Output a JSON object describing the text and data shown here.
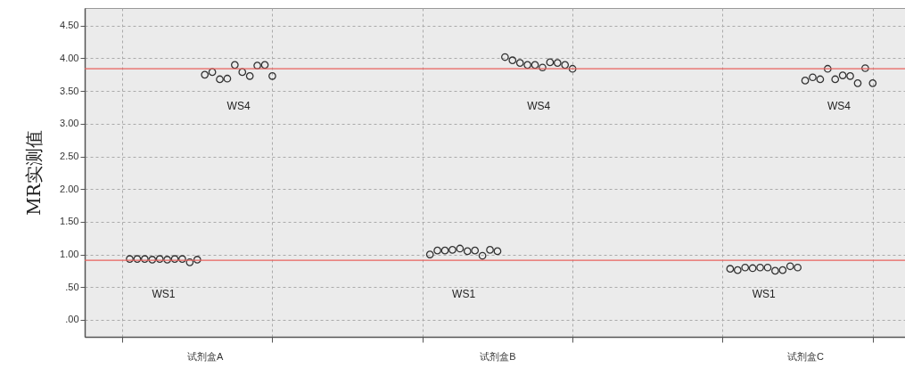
{
  "chart_data": {
    "type": "scatter",
    "ylabel": "MR实测值",
    "categories": [
      null,
      null,
      null,
      null,
      null,
      null,
      null,
      null,
      null,
      null,
      "试剂盒A",
      null,
      null,
      null,
      null,
      null,
      null,
      null,
      null,
      null,
      null,
      null,
      null,
      null,
      null,
      null,
      null,
      null,
      null,
      null,
      null,
      null,
      null,
      null,
      null,
      null,
      null,
      null,
      null,
      null,
      null,
      null,
      null,
      null,
      null,
      null,
      null,
      null,
      null,
      "试剂盒B",
      null,
      null,
      null,
      null,
      null,
      null,
      null,
      null,
      null,
      null,
      null,
      null,
      null,
      null,
      null,
      null,
      null,
      null,
      null,
      null,
      null,
      null,
      null,
      null,
      null,
      null,
      null,
      null,
      null,
      null,
      null,
      null,
      null,
      null,
      null,
      null,
      null,
      null,
      null,
      null,
      "试剂盒C",
      null,
      null,
      null,
      null,
      null,
      null,
      null,
      null,
      null
    ],
    "ylim": [
      -0.26,
      4.77
    ],
    "yticks": [
      {
        "value": 0,
        "label": ".00"
      },
      {
        "value": 0.5,
        "label": ".50"
      },
      {
        "value": 1,
        "label": "1.00"
      },
      {
        "value": 1.5,
        "label": "1.50"
      },
      {
        "value": 2,
        "label": "2.00"
      },
      {
        "value": 2.5,
        "label": "2.50"
      },
      {
        "value": 3,
        "label": "3.00"
      },
      {
        "value": 3.5,
        "label": "3.50"
      },
      {
        "value": 4,
        "label": "4.00"
      },
      {
        "value": 4.5,
        "label": "4.50"
      }
    ],
    "grid": true,
    "marker": "circle",
    "series": [
      {
        "name": "WS1",
        "color": "#333333",
        "values": [
          0.93,
          0.93,
          0.93,
          0.92,
          0.93,
          0.92,
          0.93,
          0.93,
          0.88,
          0.92,
          null,
          null,
          null,
          null,
          null,
          null,
          null,
          null,
          null,
          null,
          null,
          null,
          null,
          null,
          null,
          null,
          null,
          null,
          null,
          null,
          null,
          null,
          null,
          null,
          null,
          null,
          null,
          null,
          null,
          null,
          1.0,
          1.06,
          1.06,
          1.07,
          1.09,
          1.05,
          1.06,
          0.98,
          1.07,
          1.05,
          null,
          null,
          null,
          null,
          null,
          null,
          null,
          null,
          null,
          null,
          null,
          null,
          null,
          null,
          null,
          null,
          null,
          null,
          null,
          null,
          null,
          null,
          null,
          null,
          null,
          null,
          null,
          null,
          null,
          null,
          0.78,
          0.76,
          0.8,
          0.79,
          0.8,
          0.8,
          0.75,
          0.76,
          0.82,
          0.8,
          null,
          null,
          null,
          null,
          null,
          null,
          null,
          null,
          null,
          null
        ]
      },
      {
        "name": "WS4",
        "color": "#333333",
        "values": [
          null,
          null,
          null,
          null,
          null,
          null,
          null,
          null,
          null,
          null,
          3.75,
          3.79,
          3.68,
          3.69,
          3.9,
          3.79,
          3.73,
          3.89,
          3.9,
          3.73,
          null,
          null,
          null,
          null,
          null,
          null,
          null,
          null,
          null,
          null,
          null,
          null,
          null,
          null,
          null,
          null,
          null,
          null,
          null,
          null,
          null,
          null,
          null,
          null,
          null,
          null,
          null,
          null,
          null,
          null,
          4.02,
          3.97,
          3.93,
          3.9,
          3.9,
          3.86,
          3.94,
          3.93,
          3.9,
          3.84,
          null,
          null,
          null,
          null,
          null,
          null,
          null,
          null,
          null,
          null,
          null,
          null,
          null,
          null,
          null,
          null,
          null,
          null,
          null,
          null,
          null,
          null,
          null,
          null,
          null,
          null,
          null,
          null,
          null,
          null,
          3.66,
          3.71,
          3.68,
          3.84,
          3.68,
          3.74,
          3.73,
          3.62,
          3.85,
          3.62
        ]
      }
    ],
    "ref_lines": [
      {
        "axis": "y",
        "value": 3.84,
        "color": "#e8605c"
      },
      {
        "axis": "y",
        "value": 0.91,
        "color": "#e8605c"
      }
    ]
  }
}
